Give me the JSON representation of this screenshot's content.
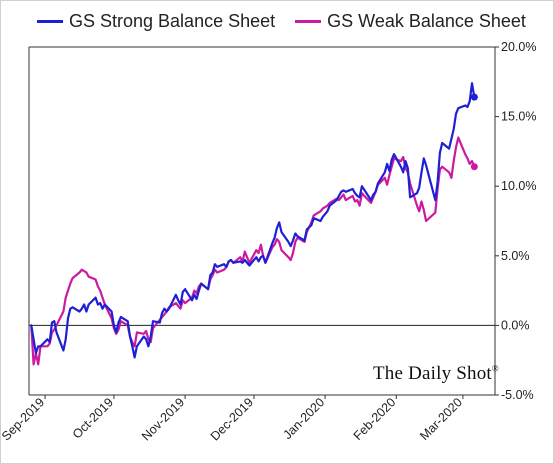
{
  "chart_data": {
    "type": "line",
    "series": [
      {
        "name": "GS Strong Balance Sheet",
        "color": "#1f1fd6",
        "points": [
          [
            "2019-08-26",
            0.0
          ],
          [
            "2019-08-27",
            -1.0
          ],
          [
            "2019-08-28",
            -2.0
          ],
          [
            "2019-08-29",
            -1.5
          ],
          [
            "2019-08-30",
            -1.5
          ],
          [
            "2019-09-02",
            -1.0
          ],
          [
            "2019-09-03",
            -1.2
          ],
          [
            "2019-09-04",
            0.2
          ],
          [
            "2019-09-05",
            0.3
          ],
          [
            "2019-09-06",
            -0.5
          ],
          [
            "2019-09-09",
            -1.8
          ],
          [
            "2019-09-10",
            -1.0
          ],
          [
            "2019-09-11",
            0.5
          ],
          [
            "2019-09-12",
            1.2
          ],
          [
            "2019-09-13",
            1.3
          ],
          [
            "2019-09-16",
            1.0
          ],
          [
            "2019-09-17",
            1.2
          ],
          [
            "2019-09-18",
            1.5
          ],
          [
            "2019-09-19",
            1.0
          ],
          [
            "2019-09-20",
            1.5
          ],
          [
            "2019-09-23",
            2.0
          ],
          [
            "2019-09-24",
            1.5
          ],
          [
            "2019-09-25",
            1.6
          ],
          [
            "2019-09-26",
            1.2
          ],
          [
            "2019-09-27",
            1.5
          ],
          [
            "2019-09-30",
            1.0
          ],
          [
            "2019-10-01",
            0.0
          ],
          [
            "2019-10-02",
            -0.5
          ],
          [
            "2019-10-03",
            0.2
          ],
          [
            "2019-10-04",
            0.6
          ],
          [
            "2019-10-07",
            0.3
          ],
          [
            "2019-10-08",
            -0.8
          ],
          [
            "2019-10-09",
            -1.5
          ],
          [
            "2019-10-10",
            -2.3
          ],
          [
            "2019-10-11",
            -1.5
          ],
          [
            "2019-10-14",
            -0.8
          ],
          [
            "2019-10-15",
            -1.0
          ],
          [
            "2019-10-16",
            -1.5
          ],
          [
            "2019-10-17",
            -0.8
          ],
          [
            "2019-10-18",
            0.3
          ],
          [
            "2019-10-21",
            0.2
          ],
          [
            "2019-10-22",
            0.9
          ],
          [
            "2019-10-23",
            1.2
          ],
          [
            "2019-10-24",
            1.0
          ],
          [
            "2019-10-25",
            1.2
          ],
          [
            "2019-10-28",
            2.2
          ],
          [
            "2019-10-29",
            1.8
          ],
          [
            "2019-10-30",
            1.5
          ],
          [
            "2019-10-31",
            2.4
          ],
          [
            "2019-11-01",
            2.6
          ],
          [
            "2019-11-04",
            1.8
          ],
          [
            "2019-11-05",
            2.2
          ],
          [
            "2019-11-06",
            1.9
          ],
          [
            "2019-11-07",
            2.5
          ],
          [
            "2019-11-08",
            3.0
          ],
          [
            "2019-11-11",
            2.6
          ],
          [
            "2019-11-12",
            3.6
          ],
          [
            "2019-11-13",
            3.8
          ],
          [
            "2019-11-14",
            4.4
          ],
          [
            "2019-11-15",
            4.2
          ],
          [
            "2019-11-18",
            4.4
          ],
          [
            "2019-11-19",
            4.2
          ],
          [
            "2019-11-20",
            4.6
          ],
          [
            "2019-11-21",
            4.7
          ],
          [
            "2019-11-22",
            4.5
          ],
          [
            "2019-11-25",
            4.6
          ],
          [
            "2019-11-26",
            4.5
          ],
          [
            "2019-11-27",
            4.7
          ],
          [
            "2019-11-29",
            4.3
          ],
          [
            "2019-12-02",
            4.9
          ],
          [
            "2019-12-03",
            4.6
          ],
          [
            "2019-12-04",
            4.9
          ],
          [
            "2019-12-05",
            5.0
          ],
          [
            "2019-12-06",
            4.5
          ],
          [
            "2019-12-09",
            5.9
          ],
          [
            "2019-12-10",
            6.3
          ],
          [
            "2019-12-11",
            7.0
          ],
          [
            "2019-12-12",
            7.4
          ],
          [
            "2019-12-13",
            6.7
          ],
          [
            "2019-12-16",
            6.0
          ],
          [
            "2019-12-17",
            5.7
          ],
          [
            "2019-12-18",
            6.1
          ],
          [
            "2019-12-19",
            6.6
          ],
          [
            "2019-12-20",
            6.4
          ],
          [
            "2019-12-23",
            6.1
          ],
          [
            "2019-12-24",
            6.9
          ],
          [
            "2019-12-26",
            7.2
          ],
          [
            "2019-12-27",
            7.7
          ],
          [
            "2019-12-30",
            7.5
          ],
          [
            "2019-12-31",
            7.8
          ],
          [
            "2020-01-02",
            8.2
          ],
          [
            "2020-01-03",
            8.6
          ],
          [
            "2020-01-06",
            9.0
          ],
          [
            "2020-01-07",
            9.3
          ],
          [
            "2020-01-08",
            9.6
          ],
          [
            "2020-01-09",
            9.7
          ],
          [
            "2020-01-10",
            9.6
          ],
          [
            "2020-01-13",
            9.8
          ],
          [
            "2020-01-14",
            9.5
          ],
          [
            "2020-01-15",
            9.3
          ],
          [
            "2020-01-16",
            9.2
          ],
          [
            "2020-01-17",
            10.0
          ],
          [
            "2020-01-21",
            9.0
          ],
          [
            "2020-01-22",
            9.4
          ],
          [
            "2020-01-23",
            9.6
          ],
          [
            "2020-01-24",
            10.2
          ],
          [
            "2020-01-27",
            11.0
          ],
          [
            "2020-01-28",
            11.6
          ],
          [
            "2020-01-29",
            11.1
          ],
          [
            "2020-01-30",
            11.9
          ],
          [
            "2020-01-31",
            12.3
          ],
          [
            "2020-02-03",
            11.4
          ],
          [
            "2020-02-04",
            11.0
          ],
          [
            "2020-02-05",
            11.8
          ],
          [
            "2020-02-06",
            11.3
          ],
          [
            "2020-02-07",
            9.2
          ],
          [
            "2020-02-10",
            9.5
          ],
          [
            "2020-02-11",
            9.9
          ],
          [
            "2020-02-12",
            11.0
          ],
          [
            "2020-02-13",
            12.0
          ],
          [
            "2020-02-14",
            11.5
          ],
          [
            "2020-02-18",
            9.0
          ],
          [
            "2020-02-19",
            10.3
          ],
          [
            "2020-02-20",
            12.4
          ],
          [
            "2020-02-21",
            13.1
          ],
          [
            "2020-02-24",
            12.7
          ],
          [
            "2020-02-25",
            13.4
          ],
          [
            "2020-02-26",
            14.1
          ],
          [
            "2020-02-27",
            15.2
          ],
          [
            "2020-02-28",
            15.6
          ],
          [
            "2020-03-02",
            15.8
          ],
          [
            "2020-03-03",
            15.7
          ],
          [
            "2020-03-04",
            16.1
          ],
          [
            "2020-03-05",
            17.4
          ],
          [
            "2020-03-06",
            16.4
          ]
        ]
      },
      {
        "name": "GS Weak Balance Sheet",
        "color": "#cc1aa0",
        "points": [
          [
            "2019-08-26",
            0.0
          ],
          [
            "2019-08-27",
            -2.8
          ],
          [
            "2019-08-28",
            -2.0
          ],
          [
            "2019-08-29",
            -2.8
          ],
          [
            "2019-08-30",
            -1.5
          ],
          [
            "2019-09-02",
            -1.5
          ],
          [
            "2019-09-03",
            -1.3
          ],
          [
            "2019-09-04",
            -0.5
          ],
          [
            "2019-09-05",
            -0.3
          ],
          [
            "2019-09-06",
            0.0
          ],
          [
            "2019-09-09",
            1.0
          ],
          [
            "2019-09-10",
            2.0
          ],
          [
            "2019-09-11",
            2.5
          ],
          [
            "2019-09-12",
            3.0
          ],
          [
            "2019-09-13",
            3.4
          ],
          [
            "2019-09-16",
            3.8
          ],
          [
            "2019-09-17",
            4.0
          ],
          [
            "2019-09-18",
            3.9
          ],
          [
            "2019-09-19",
            3.8
          ],
          [
            "2019-09-20",
            3.5
          ],
          [
            "2019-09-23",
            3.3
          ],
          [
            "2019-09-24",
            2.8
          ],
          [
            "2019-09-25",
            2.5
          ],
          [
            "2019-09-26",
            2.0
          ],
          [
            "2019-09-27",
            1.5
          ],
          [
            "2019-09-30",
            0.5
          ],
          [
            "2019-10-01",
            -0.2
          ],
          [
            "2019-10-02",
            -0.6
          ],
          [
            "2019-10-03",
            -0.3
          ],
          [
            "2019-10-04",
            0.3
          ],
          [
            "2019-10-07",
            0.0
          ],
          [
            "2019-10-08",
            -0.8
          ],
          [
            "2019-10-09",
            -1.2
          ],
          [
            "2019-10-10",
            -1.5
          ],
          [
            "2019-10-11",
            -0.5
          ],
          [
            "2019-10-14",
            -0.6
          ],
          [
            "2019-10-15",
            -0.4
          ],
          [
            "2019-10-16",
            -1.0
          ],
          [
            "2019-10-17",
            -1.2
          ],
          [
            "2019-10-18",
            -0.2
          ],
          [
            "2019-10-21",
            0.4
          ],
          [
            "2019-10-22",
            0.6
          ],
          [
            "2019-10-23",
            0.8
          ],
          [
            "2019-10-24",
            1.0
          ],
          [
            "2019-10-25",
            1.3
          ],
          [
            "2019-10-28",
            1.6
          ],
          [
            "2019-10-29",
            1.4
          ],
          [
            "2019-10-30",
            1.2
          ],
          [
            "2019-10-31",
            1.8
          ],
          [
            "2019-11-01",
            1.6
          ],
          [
            "2019-11-04",
            2.0
          ],
          [
            "2019-11-05",
            2.5
          ],
          [
            "2019-11-06",
            2.3
          ],
          [
            "2019-11-07",
            2.8
          ],
          [
            "2019-11-08",
            3.0
          ],
          [
            "2019-11-11",
            2.6
          ],
          [
            "2019-11-12",
            3.3
          ],
          [
            "2019-11-13",
            3.6
          ],
          [
            "2019-11-14",
            4.0
          ],
          [
            "2019-11-15",
            3.8
          ],
          [
            "2019-11-18",
            4.0
          ],
          [
            "2019-11-19",
            4.2
          ],
          [
            "2019-11-20",
            4.6
          ],
          [
            "2019-11-21",
            4.7
          ],
          [
            "2019-11-22",
            4.5
          ],
          [
            "2019-11-25",
            4.9
          ],
          [
            "2019-11-26",
            4.6
          ],
          [
            "2019-11-27",
            5.3
          ],
          [
            "2019-11-29",
            4.5
          ],
          [
            "2019-12-02",
            5.4
          ],
          [
            "2019-12-03",
            5.2
          ],
          [
            "2019-12-04",
            5.8
          ],
          [
            "2019-12-05",
            5.0
          ],
          [
            "2019-12-06",
            4.5
          ],
          [
            "2019-12-09",
            5.6
          ],
          [
            "2019-12-10",
            5.8
          ],
          [
            "2019-12-11",
            6.2
          ],
          [
            "2019-12-12",
            6.0
          ],
          [
            "2019-12-13",
            5.4
          ],
          [
            "2019-12-16",
            4.9
          ],
          [
            "2019-12-17",
            4.7
          ],
          [
            "2019-12-18",
            5.2
          ],
          [
            "2019-12-19",
            6.0
          ],
          [
            "2019-12-20",
            6.3
          ],
          [
            "2019-12-23",
            6.0
          ],
          [
            "2019-12-24",
            6.7
          ],
          [
            "2019-12-26",
            7.4
          ],
          [
            "2019-12-27",
            7.9
          ],
          [
            "2019-12-30",
            8.2
          ],
          [
            "2019-12-31",
            8.4
          ],
          [
            "2020-01-02",
            8.6
          ],
          [
            "2020-01-03",
            8.8
          ],
          [
            "2020-01-06",
            9.1
          ],
          [
            "2020-01-07",
            9.0
          ],
          [
            "2020-01-08",
            9.2
          ],
          [
            "2020-01-09",
            9.4
          ],
          [
            "2020-01-10",
            9.0
          ],
          [
            "2020-01-13",
            9.3
          ],
          [
            "2020-01-14",
            8.9
          ],
          [
            "2020-01-15",
            9.0
          ],
          [
            "2020-01-16",
            8.6
          ],
          [
            "2020-01-17",
            9.5
          ],
          [
            "2020-01-21",
            8.8
          ],
          [
            "2020-01-22",
            9.2
          ],
          [
            "2020-01-23",
            9.6
          ],
          [
            "2020-01-24",
            10.1
          ],
          [
            "2020-01-27",
            10.6
          ],
          [
            "2020-01-28",
            10.1
          ],
          [
            "2020-01-29",
            10.8
          ],
          [
            "2020-01-30",
            11.4
          ],
          [
            "2020-01-31",
            12.0
          ],
          [
            "2020-02-03",
            11.8
          ],
          [
            "2020-02-04",
            12.1
          ],
          [
            "2020-02-05",
            11.3
          ],
          [
            "2020-02-06",
            11.0
          ],
          [
            "2020-02-07",
            10.2
          ],
          [
            "2020-02-10",
            8.6
          ],
          [
            "2020-02-11",
            8.2
          ],
          [
            "2020-02-12",
            8.9
          ],
          [
            "2020-02-13",
            8.3
          ],
          [
            "2020-02-14",
            7.5
          ],
          [
            "2020-02-18",
            8.1
          ],
          [
            "2020-02-19",
            9.8
          ],
          [
            "2020-02-20",
            11.2
          ],
          [
            "2020-02-21",
            11.4
          ],
          [
            "2020-02-24",
            11.0
          ],
          [
            "2020-02-25",
            10.6
          ],
          [
            "2020-02-26",
            11.8
          ],
          [
            "2020-02-27",
            12.8
          ],
          [
            "2020-02-28",
            13.5
          ],
          [
            "2020-03-02",
            12.3
          ],
          [
            "2020-03-03",
            12.0
          ],
          [
            "2020-03-04",
            11.6
          ],
          [
            "2020-03-05",
            11.8
          ],
          [
            "2020-03-06",
            11.4
          ]
        ]
      }
    ],
    "ylim": [
      -5.0,
      20.0
    ],
    "y_ticks": [
      -5.0,
      0.0,
      5.0,
      10.0,
      15.0,
      20.0
    ],
    "y_tick_labels": [
      "-5.0%",
      "0.0%",
      "5.0%",
      "10.0%",
      "15.0%",
      "20.0%"
    ],
    "x_ticks": [
      "2019-09-01",
      "2019-10-01",
      "2019-11-01",
      "2019-12-01",
      "2020-01-01",
      "2020-02-01",
      "2020-03-01"
    ],
    "x_tick_labels": [
      "Sep-2019",
      "Oct-2019",
      "Nov-2019",
      "Dec-2019",
      "Jan-2020",
      "Feb-2020",
      "Mar-2020"
    ],
    "xlim": [
      "2019-08-25",
      "2020-03-15"
    ],
    "y_axis_position": "right",
    "legend_position": "top-left",
    "zero_line": true,
    "grid": false,
    "end_markers": true
  },
  "watermark": {
    "text": "The Daily Shot",
    "mark": "®"
  }
}
